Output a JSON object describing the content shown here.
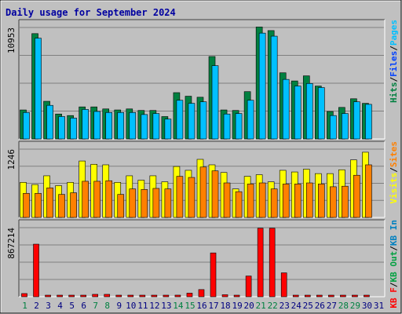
{
  "title": "Daily usage for September 2024",
  "colors": {
    "frame_bg": "#c0c0c0",
    "plot_bg": "#c0c0c0",
    "title": "#0000a0",
    "grid": "#808080",
    "axis_dark": "#404040",
    "axis_light": "#ffffff",
    "hits": "#008040",
    "files": "#0040ff",
    "pages": "#00c0ff",
    "visits": "#ffff00",
    "sites": "#ff8000",
    "kbin": "#0080c0",
    "kbout": "#00a040",
    "kbf": "#ff0000",
    "bar_outline": "#000000",
    "weekday": "#000080",
    "weekend": "#008040"
  },
  "chart_data": [
    {
      "type": "bar",
      "name": "hits-files-pages",
      "ymax_label": "10953",
      "ylim": [
        0,
        10953
      ],
      "legend": [
        {
          "text": "Hits",
          "color": "#008040"
        },
        {
          "text": "Files",
          "color": "#0040ff"
        },
        {
          "text": "Pages",
          "color": "#00c0ff"
        }
      ],
      "categories": [
        "1",
        "2",
        "3",
        "4",
        "5",
        "6",
        "7",
        "8",
        "9",
        "10",
        "11",
        "12",
        "13",
        "14",
        "15",
        "16",
        "17",
        "18",
        "19",
        "20",
        "21",
        "22",
        "23",
        "24",
        "25",
        "26",
        "27",
        "28",
        "29",
        "30",
        "31"
      ],
      "series": [
        {
          "key": "hits",
          "values": [
            2850,
            10350,
            3700,
            2450,
            2300,
            3150,
            3150,
            2950,
            2850,
            2950,
            2800,
            2800,
            2200,
            4550,
            4200,
            4100,
            8100,
            2850,
            2800,
            4650,
            11000,
            10650,
            6500,
            5700,
            6200,
            5200,
            2700,
            3100,
            3950,
            3500,
            0
          ]
        },
        {
          "key": "pages",
          "values": [
            2600,
            9900,
            3300,
            2200,
            2050,
            2900,
            2700,
            2600,
            2600,
            2600,
            2400,
            2500,
            1950,
            3800,
            3500,
            3650,
            7200,
            2450,
            2500,
            3800,
            10400,
            10100,
            5850,
            5200,
            5450,
            5050,
            2300,
            2500,
            3650,
            3400,
            0
          ]
        }
      ]
    },
    {
      "type": "bar",
      "name": "visits-sites",
      "ymax_label": "1246",
      "ylim": [
        0,
        1246
      ],
      "legend": [
        {
          "text": "Visits",
          "color": "#ffff00"
        },
        {
          "text": "Sites",
          "color": "#ff8000"
        }
      ],
      "categories": [
        "1",
        "2",
        "3",
        "4",
        "5",
        "6",
        "7",
        "8",
        "9",
        "10",
        "11",
        "12",
        "13",
        "14",
        "15",
        "16",
        "17",
        "18",
        "19",
        "20",
        "21",
        "22",
        "23",
        "24",
        "25",
        "26",
        "27",
        "28",
        "29",
        "30",
        "31"
      ],
      "series": [
        {
          "key": "visits",
          "values": [
            640,
            600,
            760,
            580,
            640,
            1030,
            970,
            960,
            640,
            760,
            680,
            760,
            650,
            930,
            860,
            1060,
            960,
            820,
            520,
            750,
            780,
            650,
            860,
            830,
            880,
            800,
            800,
            870,
            1050,
            1190,
            0
          ]
        },
        {
          "key": "sites",
          "values": [
            440,
            440,
            540,
            420,
            450,
            660,
            660,
            670,
            420,
            520,
            510,
            530,
            520,
            750,
            730,
            920,
            850,
            630,
            470,
            610,
            630,
            520,
            610,
            610,
            630,
            610,
            560,
            570,
            770,
            960,
            0
          ]
        }
      ]
    },
    {
      "type": "bar",
      "name": "kbytes",
      "ymax_label": "867214",
      "ylim": [
        0,
        867214
      ],
      "legend": [
        {
          "text": "KB F",
          "color": "#ff0000"
        },
        {
          "text": "/",
          "color": "#000000"
        },
        {
          "text": "KB Out",
          "color": "#00a040"
        },
        {
          "text": "/",
          "color": "#000000"
        },
        {
          "text": "KB In",
          "color": "#0080c0"
        }
      ],
      "categories": [
        "1",
        "2",
        "3",
        "4",
        "5",
        "6",
        "7",
        "8",
        "9",
        "10",
        "11",
        "12",
        "13",
        "14",
        "15",
        "16",
        "17",
        "18",
        "19",
        "20",
        "21",
        "22",
        "23",
        "24",
        "25",
        "26",
        "27",
        "28",
        "29",
        "30",
        "31"
      ],
      "series": [
        {
          "key": "kbf",
          "values": [
            40000,
            660000,
            12000,
            8000,
            15000,
            12000,
            30000,
            30000,
            15000,
            8000,
            10000,
            15000,
            10000,
            20000,
            45000,
            90000,
            550000,
            25000,
            10000,
            260000,
            860000,
            860000,
            300000,
            10000,
            12000,
            10000,
            8000,
            10000,
            10000,
            10000,
            0
          ]
        }
      ]
    }
  ],
  "weekend_days": [
    1,
    7,
    8,
    14,
    15,
    21,
    22,
    28,
    29
  ]
}
